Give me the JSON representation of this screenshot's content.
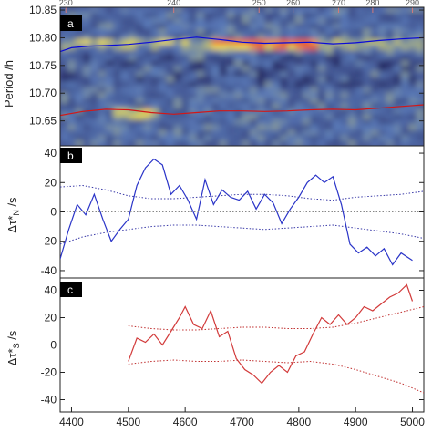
{
  "chart_data": [
    {
      "panel_label": "a",
      "type": "heatmap",
      "ylabel": "Period /h",
      "ylim": [
        10.605,
        10.855
      ],
      "xlim": [
        4380,
        5020
      ],
      "yticks": [
        "10.65",
        "10.70",
        "10.75",
        "10.80",
        "10.85"
      ],
      "ytick_values": [
        10.65,
        10.7,
        10.75,
        10.8,
        10.85
      ],
      "top_axis_ticks": [
        "230",
        "240",
        "250",
        "260",
        "270",
        "280",
        "290"
      ],
      "top_axis_positions": [
        4390,
        4580,
        4730,
        4790,
        4870,
        4930,
        5000
      ],
      "colors": {
        "low": "#1e1f58",
        "mid": "#5a7ab8",
        "high": "#f3e24a",
        "peak": "#e8603a",
        "north": "#0a0ad8",
        "south": "#d21818"
      },
      "series": [
        {
          "name": "",
          "color": "#0a0ad8",
          "x": [
            4380,
            4400,
            4430,
            4460,
            4500,
            4540,
            4580,
            4620,
            4660,
            4700,
            4740,
            4780,
            4820,
            4860,
            4900,
            4940,
            4980,
            5020
          ],
          "y": [
            10.775,
            10.782,
            10.785,
            10.786,
            10.788,
            10.792,
            10.797,
            10.801,
            10.797,
            10.792,
            10.79,
            10.791,
            10.792,
            10.789,
            10.791,
            10.795,
            10.798,
            10.8
          ]
        },
        {
          "name": "",
          "color": "#d21818",
          "x": [
            4380,
            4420,
            4460,
            4500,
            4540,
            4580,
            4620,
            4660,
            4700,
            4740,
            4780,
            4820,
            4860,
            4900,
            4940,
            4980,
            5020
          ],
          "y": [
            10.66,
            10.667,
            10.671,
            10.67,
            10.665,
            10.662,
            10.665,
            10.668,
            10.668,
            10.667,
            10.668,
            10.67,
            10.671,
            10.67,
            10.673,
            10.676,
            10.679
          ]
        }
      ]
    },
    {
      "panel_label": "b",
      "type": "line",
      "ylabel": "Δτ*",
      "ylabel_sub": "N",
      "ylabel_unit": " /s",
      "ylim": [
        -45,
        45
      ],
      "xlim": [
        4380,
        5020
      ],
      "yticks": [
        "-40",
        "-20",
        "0",
        "20",
        "40"
      ],
      "ytick_values": [
        -40,
        -20,
        0,
        20,
        40
      ],
      "series": [
        {
          "name": "",
          "color": "#2a34c8",
          "x": [
            4380,
            4395,
            4410,
            4425,
            4440,
            4455,
            4470,
            4485,
            4500,
            4515,
            4530,
            4545,
            4560,
            4575,
            4590,
            4605,
            4620,
            4635,
            4650,
            4665,
            4680,
            4695,
            4710,
            4725,
            4740,
            4755,
            4770,
            4785,
            4800,
            4815,
            4830,
            4845,
            4860,
            4875,
            4890,
            4905,
            4920,
            4935,
            4950,
            4965,
            4980,
            5000
          ],
          "y": [
            -32,
            -12,
            5,
            -2,
            12,
            -5,
            -20,
            -12,
            -5,
            18,
            30,
            36,
            32,
            12,
            18,
            8,
            -5,
            22,
            5,
            15,
            10,
            8,
            14,
            2,
            12,
            6,
            -8,
            2,
            10,
            20,
            25,
            20,
            24,
            5,
            -22,
            -28,
            -24,
            -30,
            -25,
            -36,
            -28,
            -33
          ]
        },
        {
          "name": "",
          "color": "#3a3aa8",
          "dashed": true,
          "x": [
            4380,
            4420,
            4460,
            4500,
            4540,
            4580,
            4620,
            4660,
            4700,
            4740,
            4780,
            4820,
            4860,
            4900,
            4940,
            4980,
            5020
          ],
          "y": [
            17,
            18,
            15,
            11,
            9,
            9,
            10,
            11,
            12,
            12,
            11,
            9,
            8,
            10,
            11,
            12,
            14
          ]
        },
        {
          "name": "",
          "color": "#3a3aa8",
          "dashed": true,
          "x": [
            4380,
            4420,
            4460,
            4500,
            4540,
            4580,
            4620,
            4660,
            4700,
            4740,
            4780,
            4820,
            4860,
            4900,
            4940,
            4980,
            5020
          ],
          "y": [
            -22,
            -17,
            -14,
            -12,
            -10,
            -9,
            -9,
            -10,
            -11,
            -12,
            -11,
            -10,
            -9,
            -11,
            -13,
            -15,
            -18
          ]
        },
        {
          "name": "",
          "color": "#888888",
          "dashed": true,
          "x": [
            4380,
            5020
          ],
          "y": [
            0,
            0
          ]
        }
      ]
    },
    {
      "panel_label": "c",
      "type": "line",
      "ylabel": "Δτ*",
      "ylabel_sub": "S",
      "ylabel_unit": " /s",
      "ylim": [
        -49,
        49
      ],
      "xlim": [
        4380,
        5020
      ],
      "xlabel": "",
      "xticks": [
        "4400",
        "4500",
        "4600",
        "4700",
        "4800",
        "4900",
        "5000"
      ],
      "xtick_values": [
        4400,
        4500,
        4600,
        4700,
        4800,
        4900,
        5000
      ],
      "yticks": [
        "-40",
        "-20",
        "0",
        "20",
        "40"
      ],
      "ytick_values": [
        -40,
        -20,
        0,
        20,
        40
      ],
      "series": [
        {
          "name": "",
          "color": "#d23a3a",
          "x": [
            4500,
            4515,
            4530,
            4545,
            4560,
            4575,
            4590,
            4600,
            4615,
            4630,
            4645,
            4660,
            4675,
            4690,
            4705,
            4720,
            4735,
            4750,
            4765,
            4780,
            4795,
            4810,
            4825,
            4840,
            4855,
            4870,
            4885,
            4900,
            4915,
            4930,
            4945,
            4960,
            4975,
            4990,
            5000
          ],
          "y": [
            -12,
            5,
            2,
            8,
            0,
            10,
            20,
            28,
            15,
            12,
            25,
            6,
            10,
            -10,
            -18,
            -22,
            -28,
            -20,
            -15,
            -20,
            -8,
            -5,
            8,
            20,
            15,
            22,
            15,
            20,
            28,
            25,
            30,
            35,
            38,
            44,
            32
          ]
        },
        {
          "name": "",
          "color": "#c03030",
          "dashed": true,
          "x": [
            4500,
            4540,
            4580,
            4620,
            4660,
            4700,
            4740,
            4780,
            4820,
            4860,
            4900,
            4940,
            4980,
            5020
          ],
          "y": [
            14,
            12,
            11,
            11,
            12,
            13,
            13,
            12,
            12,
            13,
            16,
            20,
            24,
            28
          ]
        },
        {
          "name": "",
          "color": "#c03030",
          "dashed": true,
          "x": [
            4500,
            4540,
            4580,
            4620,
            4660,
            4700,
            4740,
            4780,
            4820,
            4860,
            4900,
            4940,
            4980,
            5020
          ],
          "y": [
            -14,
            -12,
            -11,
            -12,
            -12,
            -11,
            -12,
            -13,
            -12,
            -14,
            -18,
            -23,
            -28,
            -35
          ]
        },
        {
          "name": "",
          "color": "#888888",
          "dashed": true,
          "x": [
            4380,
            5020
          ],
          "y": [
            0,
            0
          ]
        }
      ]
    }
  ]
}
